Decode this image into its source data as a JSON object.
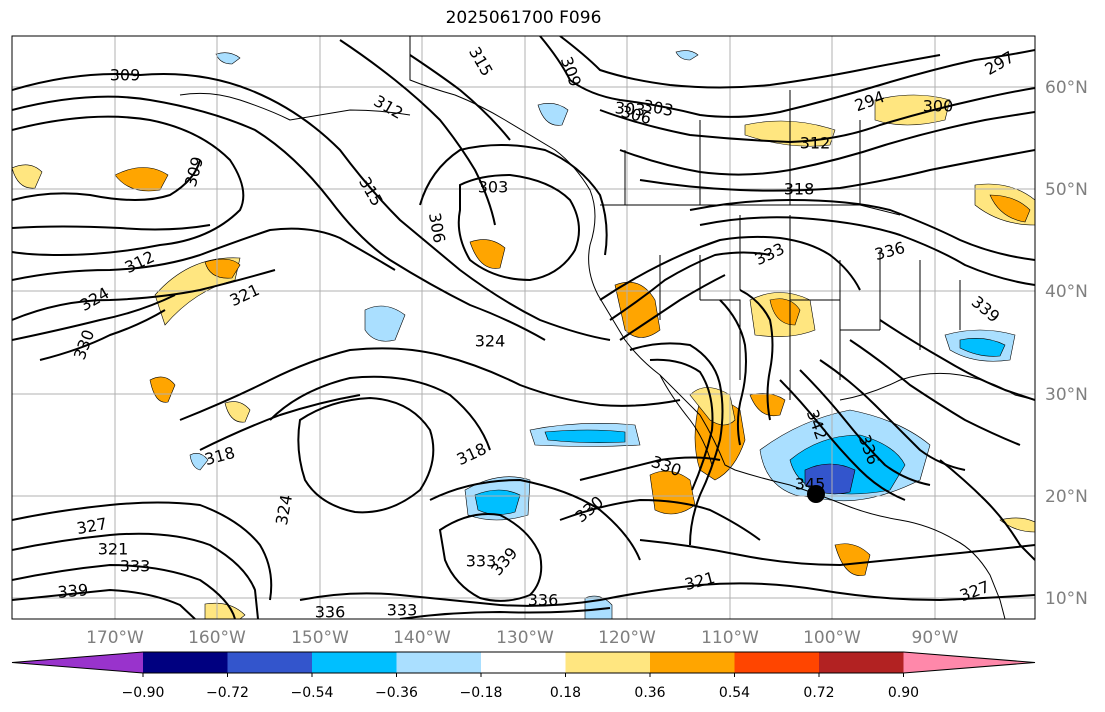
{
  "title": "2025061700 F096",
  "latitude_labels": [
    "60°N",
    "50°N",
    "40°N",
    "30°N",
    "20°N",
    "10°N"
  ],
  "longitude_labels": [
    "170°W",
    "160°W",
    "150°W",
    "140°W",
    "130°W",
    "120°W",
    "110°W",
    "100°W",
    "90°W"
  ],
  "colorbar": {
    "labels": [
      "−0.90",
      "−0.72",
      "−0.54",
      "−0.36",
      "−0.18",
      "0.18",
      "0.36",
      "0.54",
      "0.72",
      "0.90"
    ],
    "colors": [
      "#9933cc",
      "#000080",
      "#3355cc",
      "#00bfff",
      "#aadfff",
      "#ffffff",
      "#ffe680",
      "#ffa500",
      "#ff4500",
      "#b22222",
      "#ff88aa"
    ]
  },
  "contour_labels": [
    "309",
    "315",
    "309",
    "303",
    "297",
    "294",
    "300",
    "312",
    "306",
    "303",
    "312",
    "309",
    "315",
    "303",
    "306",
    "318",
    "312",
    "324",
    "321",
    "324",
    "330",
    "333",
    "336",
    "339",
    "342",
    "345",
    "336",
    "324",
    "318",
    "330",
    "327",
    "318",
    "321",
    "333",
    "339",
    "336",
    "333",
    "336",
    "333",
    "339",
    "321",
    "327",
    "330"
  ],
  "colors": {
    "contour": "#000000",
    "coast": "#000000",
    "grid": "#b0b0b0"
  }
}
